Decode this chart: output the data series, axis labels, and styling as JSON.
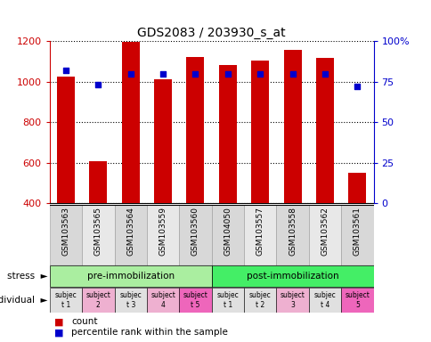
{
  "title": "GDS2083 / 203930_s_at",
  "samples": [
    "GSM103563",
    "GSM103565",
    "GSM103564",
    "GSM103559",
    "GSM103560",
    "GSM104050",
    "GSM103557",
    "GSM103558",
    "GSM103562",
    "GSM103561"
  ],
  "counts": [
    1025,
    610,
    1195,
    1010,
    1120,
    1080,
    1105,
    1155,
    1115,
    550
  ],
  "percentile_ranks": [
    82,
    73,
    80,
    80,
    80,
    80,
    80,
    80,
    80,
    72
  ],
  "ylim_left": [
    400,
    1200
  ],
  "ylim_right": [
    0,
    100
  ],
  "yticks_left": [
    400,
    600,
    800,
    1000,
    1200
  ],
  "yticks_right": [
    0,
    25,
    50,
    75,
    100
  ],
  "ytick_right_labels": [
    "0",
    "25",
    "50",
    "75",
    "100%"
  ],
  "stress_groups": [
    {
      "label": "pre-immobilization",
      "start": 0,
      "end": 5,
      "color": "#AAEEA0"
    },
    {
      "label": "post-immobilization",
      "start": 5,
      "end": 10,
      "color": "#44EE66"
    }
  ],
  "individuals": [
    {
      "label": "subjec\nt 1",
      "bg": "#E0E0E0"
    },
    {
      "label": "subject\n2",
      "bg": "#EEB0D0"
    },
    {
      "label": "subjec\nt 3",
      "bg": "#E0E0E0"
    },
    {
      "label": "subject\n4",
      "bg": "#EEB0D0"
    },
    {
      "label": "subject\nt 5",
      "bg": "#EE66BB"
    },
    {
      "label": "subjec\nt 1",
      "bg": "#E0E0E0"
    },
    {
      "label": "subjec\nt 2",
      "bg": "#E0E0E0"
    },
    {
      "label": "subject\n3",
      "bg": "#EEB0D0"
    },
    {
      "label": "subjec\nt 4",
      "bg": "#E0E0E0"
    },
    {
      "label": "subject\n5",
      "bg": "#EE66BB"
    }
  ],
  "col_colors": [
    "#D8D8D8",
    "#E8E8E8",
    "#D8D8D8",
    "#E8E8E8",
    "#D8D8D8",
    "#D8D8D8",
    "#E8E8E8",
    "#D8D8D8",
    "#E8E8E8",
    "#D8D8D8"
  ],
  "bar_color": "#CC0000",
  "dot_color": "#0000CC",
  "bar_width": 0.55,
  "label_color_left": "#CC0000",
  "label_color_right": "#0000CC",
  "bg_color": "#FFFFFF"
}
